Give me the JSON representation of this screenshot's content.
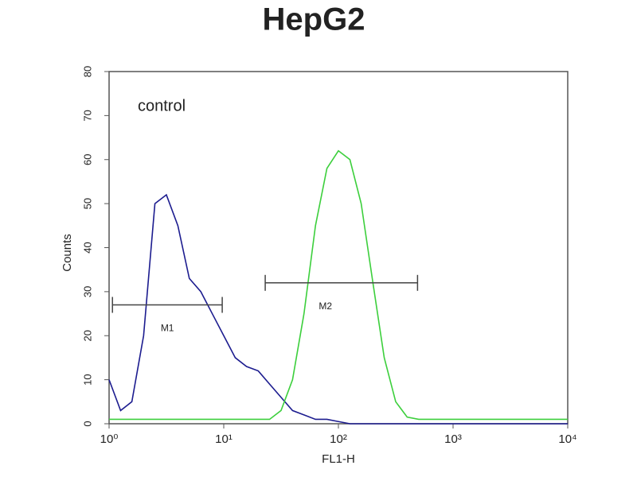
{
  "chart_data": {
    "type": "line",
    "title": "HepG2",
    "xlabel": "FL1-H",
    "ylabel": "Counts",
    "annotation": "control",
    "xscale": "log",
    "xlim": [
      1,
      10000
    ],
    "xticks": [
      {
        "value": 1,
        "label": "10⁰"
      },
      {
        "value": 10,
        "label": "10¹"
      },
      {
        "value": 100,
        "label": "10²"
      },
      {
        "value": 1000,
        "label": "10³"
      },
      {
        "value": 10000,
        "label": "10⁴"
      }
    ],
    "ylim": [
      0,
      80
    ],
    "yticks": [
      0,
      10,
      20,
      30,
      40,
      50,
      60,
      70,
      80
    ],
    "grid": false,
    "x": [
      1,
      1.26,
      1.58,
      2,
      2.51,
      3.16,
      3.98,
      5.01,
      6.31,
      7.94,
      10,
      12.6,
      15.8,
      20,
      25.1,
      31.6,
      39.8,
      50.1,
      63.1,
      79.4,
      100,
      126,
      158,
      200,
      251,
      316,
      398,
      501,
      631,
      794,
      1000,
      1260,
      1580,
      2000,
      2510,
      3160,
      3980,
      5010,
      6310,
      7940,
      10000
    ],
    "series": [
      {
        "color": "#1c1c8f",
        "values": [
          10,
          3,
          5,
          20,
          50,
          52,
          45,
          33,
          30,
          25,
          20,
          15,
          13,
          12,
          9,
          6,
          3,
          2,
          1,
          1,
          0.5,
          0,
          0,
          0,
          0,
          0,
          0,
          0,
          0,
          0,
          0,
          0,
          0,
          0,
          0,
          0,
          0,
          0,
          0,
          0,
          0
        ]
      },
      {
        "color": "#3ccf3c",
        "values": [
          1,
          1,
          1,
          1,
          1,
          1,
          1,
          1,
          1,
          1,
          1,
          1,
          1,
          1,
          1,
          3,
          10,
          25,
          45,
          58,
          62,
          60,
          50,
          32,
          15,
          5,
          1.5,
          1,
          1,
          1,
          1,
          1,
          1,
          1,
          1,
          1,
          1,
          1,
          1,
          1,
          1
        ]
      }
    ],
    "gates": [
      {
        "label": "M1",
        "x": [
          1.07,
          9.7
        ],
        "y": 27
      },
      {
        "label": "M2",
        "x": [
          23,
          490
        ],
        "y": 32
      }
    ]
  }
}
